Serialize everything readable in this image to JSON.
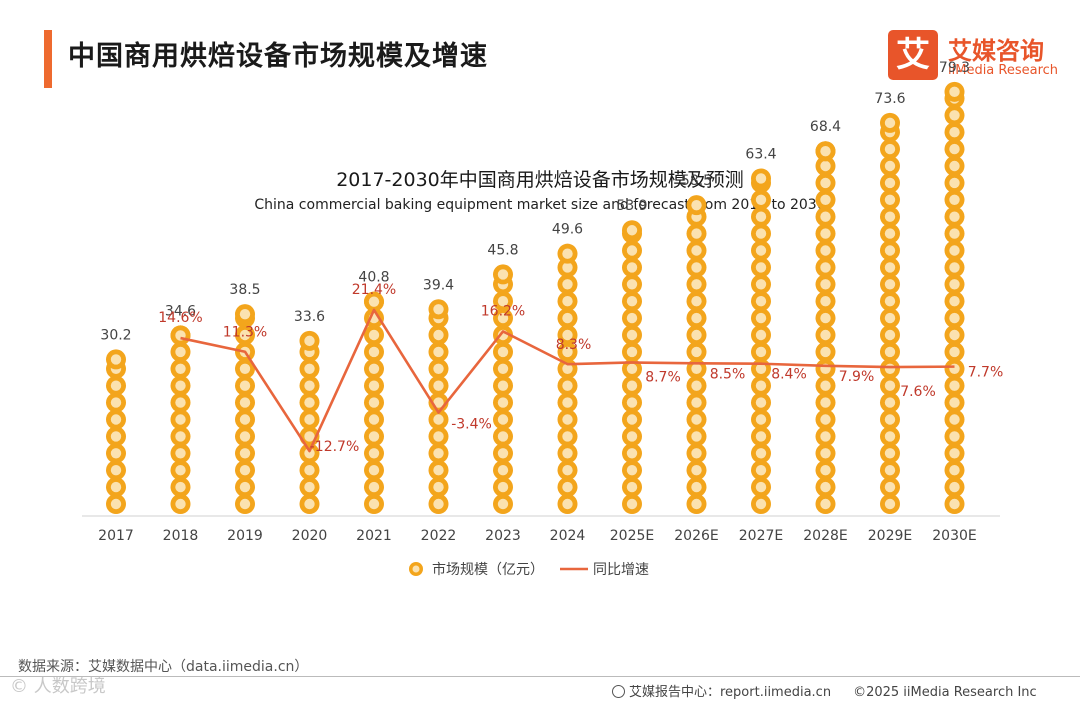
{
  "header": {
    "title": "中国商用烘焙设备市场规模及增速"
  },
  "logo": {
    "mark": "艾",
    "name_cn": "艾媒咨询",
    "name_en": "iiMedia Research"
  },
  "chart_data": {
    "type": "bar",
    "title": "2017-2030年中国商用烘焙设备市场规模及预测",
    "subtitle": "China commercial baking equipment market size and forecast from 2017 to 2030",
    "categories": [
      "2017",
      "2018",
      "2019",
      "2020",
      "2021",
      "2022",
      "2023",
      "2024",
      "2025E",
      "2026E",
      "2027E",
      "2028E",
      "2029E",
      "2030E"
    ],
    "series": [
      {
        "name": "市场规模（亿元）",
        "type": "bar",
        "color": "#f3a51c",
        "values": [
          30.2,
          34.6,
          38.5,
          33.6,
          40.8,
          39.4,
          45.8,
          49.6,
          53.9,
          58.5,
          63.4,
          68.4,
          73.6,
          79.3
        ],
        "labels": [
          "30.2",
          "34.6",
          "38.5",
          "33.6",
          "40.8",
          "39.4",
          "45.8",
          "49.6",
          "53.9",
          "58.5",
          "63.4",
          "68.4",
          "73.6",
          "79.3"
        ]
      },
      {
        "name": "同比增速",
        "type": "line",
        "color": "#e8663d",
        "values": [
          null,
          14.6,
          11.3,
          -12.7,
          21.4,
          -3.4,
          16.2,
          8.3,
          8.7,
          8.5,
          8.4,
          7.9,
          7.6,
          7.7
        ],
        "labels": [
          "",
          "14.6%",
          "11.3%",
          "-12.7%",
          "21.4%",
          "-3.4%",
          "16.2%",
          "8.3%",
          "8.7%",
          "8.5%",
          "8.4%",
          "7.9%",
          "7.6%",
          "7.7%"
        ]
      }
    ],
    "legend_position": "bottom",
    "grid": false
  },
  "footer": {
    "source": "数据来源：艾媒数据中心（data.iimedia.cn）",
    "watermark": "© 人数跨境",
    "report_site": "艾媒报告中心：report.iimedia.cn",
    "copyright": "©2025  iiMedia Research  Inc"
  }
}
